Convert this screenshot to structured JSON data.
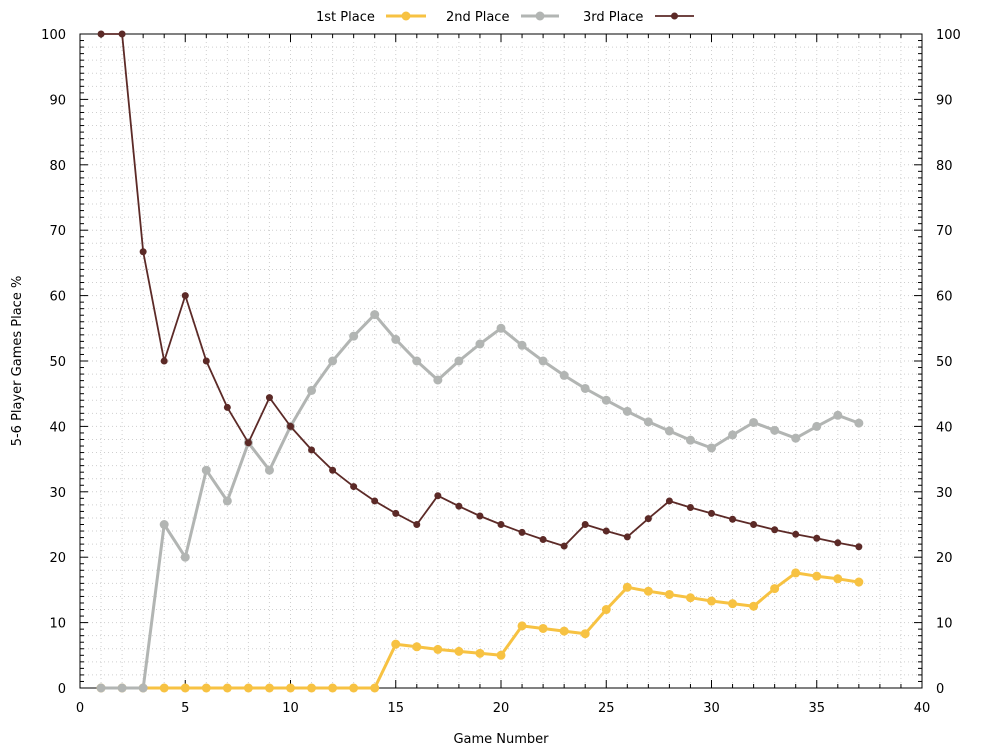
{
  "chart_data": {
    "type": "line",
    "title": "",
    "xlabel": "Game Number",
    "ylabel": "5-6 Player Games Place %",
    "xlim": [
      0,
      40
    ],
    "ylim": [
      0,
      100
    ],
    "x_ticks": [
      0,
      5,
      10,
      15,
      20,
      25,
      30,
      35,
      40
    ],
    "y_ticks": [
      0,
      10,
      20,
      30,
      40,
      50,
      60,
      70,
      80,
      90,
      100
    ],
    "grid": "dotted",
    "legend_position": "top-center",
    "x": [
      1,
      2,
      3,
      4,
      5,
      6,
      7,
      8,
      9,
      10,
      11,
      12,
      13,
      14,
      15,
      16,
      17,
      18,
      19,
      20,
      21,
      22,
      23,
      24,
      25,
      26,
      27,
      28,
      29,
      30,
      31,
      32,
      33,
      34,
      35,
      36,
      37
    ],
    "series": [
      {
        "name": "1st Place",
        "color": "#f7c242",
        "values": [
          0,
          0,
          0,
          0,
          0,
          0,
          0,
          0,
          0,
          0,
          0,
          0,
          0,
          0,
          6.7,
          6.3,
          5.9,
          5.6,
          5.3,
          5.0,
          9.5,
          9.1,
          8.7,
          8.3,
          12.0,
          15.4,
          14.8,
          14.3,
          13.8,
          13.3,
          12.9,
          12.5,
          15.2,
          17.6,
          17.1,
          16.7,
          16.2
        ]
      },
      {
        "name": "2nd Place",
        "color": "#b2b5b3",
        "values": [
          0,
          0,
          0,
          25.0,
          20.0,
          33.3,
          28.6,
          37.5,
          33.3,
          40.0,
          45.5,
          50.0,
          53.8,
          57.1,
          53.3,
          50.0,
          47.1,
          50.0,
          52.6,
          55.0,
          52.4,
          50.0,
          47.8,
          45.8,
          44.0,
          42.3,
          40.7,
          39.3,
          37.9,
          36.7,
          38.7,
          40.6,
          39.4,
          38.2,
          40.0,
          41.7,
          40.5
        ]
      },
      {
        "name": "3rd Place",
        "color": "#5c2a27",
        "values": [
          100,
          100,
          66.7,
          50.0,
          60.0,
          50.0,
          42.9,
          37.5,
          44.4,
          40.0,
          36.4,
          33.3,
          30.8,
          28.6,
          26.7,
          25.0,
          29.4,
          27.8,
          26.3,
          25.0,
          23.8,
          22.7,
          21.7,
          25.0,
          24.0,
          23.1,
          25.9,
          28.6,
          27.6,
          26.7,
          25.8,
          25.0,
          24.2,
          23.5,
          22.9,
          22.2,
          21.6
        ]
      }
    ]
  }
}
